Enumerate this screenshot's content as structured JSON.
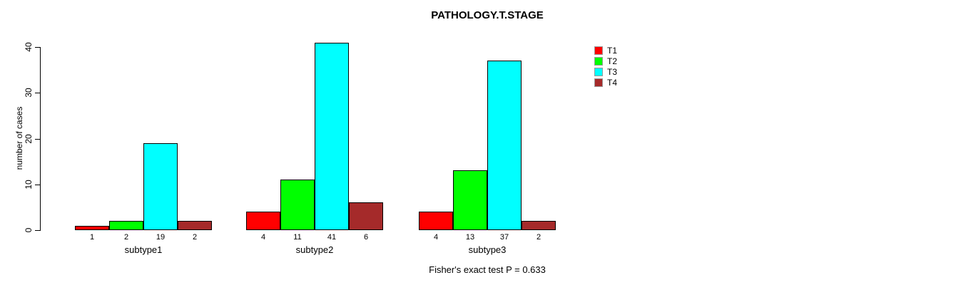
{
  "chart_data": {
    "type": "bar",
    "title": "PATHOLOGY.T.STAGE",
    "ylabel": "number of cases",
    "xlabel": "",
    "categories": [
      "subtype1",
      "subtype2",
      "subtype3"
    ],
    "series": [
      {
        "name": "T1",
        "color": "#FF0000",
        "values": [
          1,
          4,
          4
        ]
      },
      {
        "name": "T2",
        "color": "#00FF00",
        "values": [
          2,
          11,
          13
        ]
      },
      {
        "name": "T3",
        "color": "#00FFFF",
        "values": [
          19,
          41,
          37
        ]
      },
      {
        "name": "T4",
        "color": "#A52A2A",
        "values": [
          2,
          6,
          2
        ]
      }
    ],
    "bar_value_labels": [
      [
        1,
        2,
        19,
        2
      ],
      [
        4,
        11,
        41,
        6
      ],
      [
        4,
        13,
        37,
        2
      ]
    ],
    "yticks": [
      0,
      10,
      20,
      30,
      40
    ],
    "ylim": [
      0,
      40
    ],
    "grid": false,
    "legend_position": "right",
    "legend_entries": [
      "T1",
      "T2",
      "T3",
      "T4"
    ],
    "annotation": "Fisher's exact test P = 0.633",
    "bar_border_color": "#000000",
    "axis_color": "#000000",
    "background_color": "#FFFFFF"
  }
}
